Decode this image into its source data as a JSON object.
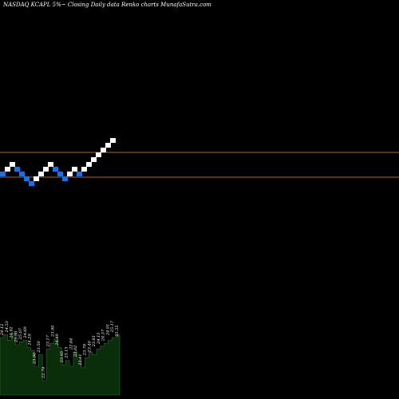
{
  "title": "NASDAQ KCAPL 5%~  Closing Daily data  Renko  charts MunafaSutra.com",
  "colors": {
    "background": "#000000",
    "up_brick": "#ffffff",
    "down_brick": "#1f6fe0",
    "reference_line": "#b5651d",
    "volume_fill": "#0a2e0a",
    "volume_stroke": "#2e6b2e",
    "label_text": "#ffffff"
  },
  "chart_data": {
    "type": "renko",
    "reference_lines": [
      "upper",
      "lower"
    ],
    "bricks": [
      {
        "dir": "down",
        "level": 0
      },
      {
        "dir": "up",
        "level": 1
      },
      {
        "dir": "up",
        "level": 2
      },
      {
        "dir": "down",
        "level": 1
      },
      {
        "dir": "down",
        "level": 0
      },
      {
        "dir": "down",
        "level": -1
      },
      {
        "dir": "down",
        "level": -2
      },
      {
        "dir": "up",
        "level": -1
      },
      {
        "dir": "up",
        "level": 0
      },
      {
        "dir": "up",
        "level": 1
      },
      {
        "dir": "up",
        "level": 2
      },
      {
        "dir": "down",
        "level": 1
      },
      {
        "dir": "down",
        "level": 0
      },
      {
        "dir": "down",
        "level": -1
      },
      {
        "dir": "up",
        "level": 0
      },
      {
        "dir": "up",
        "level": 1
      },
      {
        "dir": "down",
        "level": 0
      },
      {
        "dir": "up",
        "level": 1
      },
      {
        "dir": "up",
        "level": 2
      },
      {
        "dir": "up",
        "level": 3
      },
      {
        "dir": "up",
        "level": 4
      },
      {
        "dir": "up",
        "level": 5
      },
      {
        "dir": "up",
        "level": 6
      },
      {
        "dir": "up",
        "level": 7
      }
    ],
    "price_labels": [
      "24.12",
      "24.53",
      "24.92",
      "25.50",
      "25.07",
      "24.69",
      "24.29",
      "23.90",
      "23.50",
      "22.79",
      "23.17",
      "23.90",
      "24.49",
      "23.95",
      "23.15",
      "22.64",
      "23.02",
      "23.41",
      "23.78",
      "23.40",
      "23.81",
      "24.15",
      "24.57",
      "24.91",
      "25.17",
      "25.55"
    ],
    "volume_profile": [
      0.8,
      0.84,
      0.76,
      0.86,
      0.7,
      0.74,
      0.76,
      0.66,
      0.62,
      0.4,
      0.56,
      0.2,
      0.64,
      0.72,
      0.78,
      0.66,
      0.42,
      0.48,
      0.4,
      0.6,
      0.5,
      0.38,
      0.52,
      0.6,
      0.56,
      0.64,
      0.68,
      0.72,
      0.76,
      0.8,
      0.84,
      0.78
    ]
  }
}
